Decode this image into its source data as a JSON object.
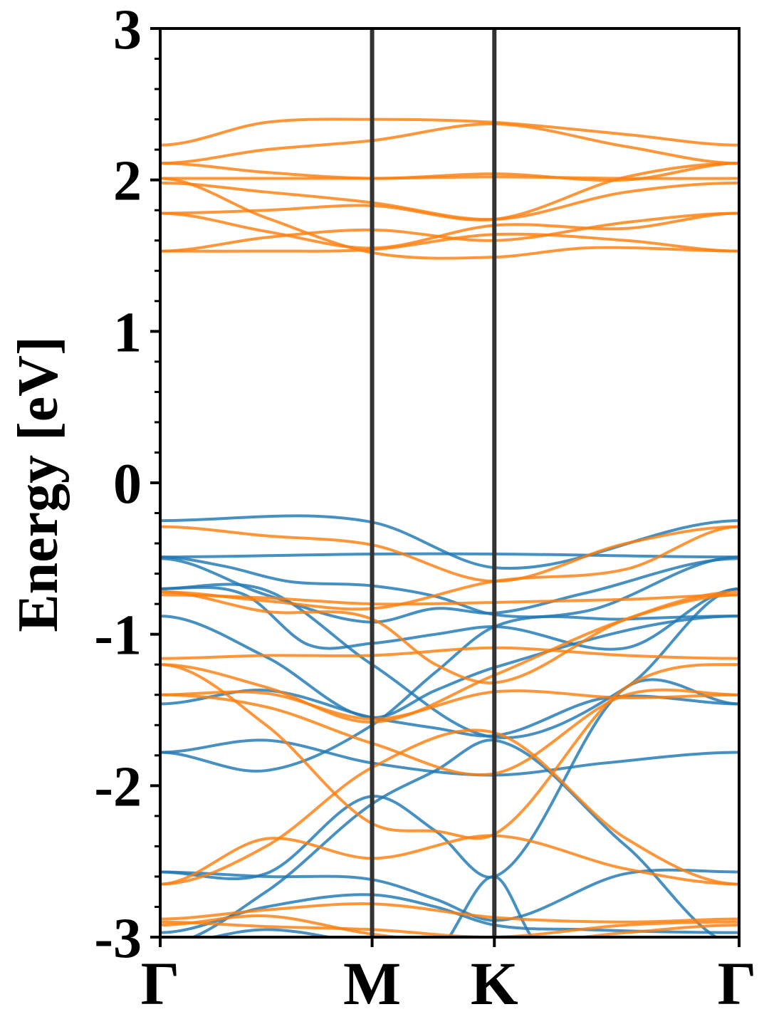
{
  "chart_data": {
    "type": "line",
    "title": "",
    "xlabel": "",
    "ylabel": "Energy [eV]",
    "ylim": [
      -3,
      3
    ],
    "yticks": [
      3,
      2,
      1,
      0,
      -1,
      -2,
      -3
    ],
    "ytick_labels": [
      "3",
      "2",
      "1",
      "0",
      "-1",
      "-2",
      "-3"
    ],
    "x_path": {
      "points": [
        "Γ",
        "M",
        "K",
        "Γ"
      ],
      "positions": [
        0.0,
        1.0,
        1.577,
        2.732
      ]
    },
    "grid": false,
    "legend": "none",
    "series_colors": {
      "blue": "#1f77b4",
      "orange": "#ff7f0e"
    },
    "series": [
      {
        "color": "blue",
        "x": [
          0.0,
          1.0,
          1.577,
          2.732
        ],
        "y": [
          -0.25,
          -0.26,
          -0.56,
          -0.25
        ]
      },
      {
        "color": "blue",
        "x": [
          0.0,
          1.0,
          1.577,
          2.732
        ],
        "y": [
          -0.49,
          -0.47,
          -0.47,
          -0.49
        ]
      },
      {
        "color": "blue",
        "x": [
          0.0,
          0.3,
          0.6,
          1.0,
          1.3,
          1.577,
          2.0,
          2.732
        ],
        "y": [
          -0.49,
          -0.55,
          -0.65,
          -0.68,
          -0.75,
          -0.87,
          -0.85,
          -0.49
        ]
      },
      {
        "color": "blue",
        "x": [
          0.0,
          0.5,
          1.0,
          1.3,
          1.577,
          2.0,
          2.732
        ],
        "y": [
          -0.5,
          -0.74,
          -0.92,
          -0.83,
          -0.86,
          -0.73,
          -0.5
        ]
      },
      {
        "color": "blue",
        "x": [
          0.0,
          0.4,
          0.7,
          1.0,
          1.3,
          1.577,
          2.2,
          2.732
        ],
        "y": [
          -0.7,
          -0.74,
          -1.07,
          -1.06,
          -1.0,
          -0.95,
          -1.09,
          -0.7
        ]
      },
      {
        "color": "blue",
        "x": [
          0.0,
          0.5,
          1.0,
          1.577,
          2.2,
          2.732
        ],
        "y": [
          -0.7,
          -0.71,
          -1.2,
          -1.68,
          -1.35,
          -0.7
        ]
      },
      {
        "color": "blue",
        "x": [
          0.0,
          0.5,
          1.0,
          1.3,
          1.577,
          2.732
        ],
        "y": [
          -0.88,
          -1.15,
          -1.55,
          -1.37,
          -1.22,
          -0.88
        ]
      },
      {
        "color": "blue",
        "x": [
          0.0,
          0.5,
          1.0,
          1.3,
          1.577,
          2.1,
          2.732
        ],
        "y": [
          -1.46,
          -1.37,
          -1.55,
          -1.62,
          -1.67,
          -1.42,
          -1.46
        ]
      },
      {
        "color": "blue",
        "x": [
          0.0,
          0.5,
          1.0,
          1.3,
          1.577,
          2.2,
          2.732
        ],
        "y": [
          -1.78,
          -1.9,
          -1.6,
          -1.25,
          -0.95,
          -0.9,
          -0.88
        ]
      },
      {
        "color": "blue",
        "x": [
          0.0,
          0.5,
          1.0,
          1.577,
          2.1,
          2.732
        ],
        "y": [
          -1.78,
          -1.7,
          -1.85,
          -1.93,
          -1.85,
          -1.78
        ]
      },
      {
        "color": "blue",
        "x": [
          0.0,
          0.5,
          1.0,
          1.3,
          1.577,
          2.2,
          2.732
        ],
        "y": [
          -2.57,
          -2.58,
          -2.07,
          -2.3,
          -2.6,
          -1.35,
          -1.46
        ]
      },
      {
        "color": "blue",
        "x": [
          0.0,
          0.5,
          1.0,
          1.3,
          1.577,
          2.2,
          2.732
        ],
        "y": [
          -3.05,
          -2.7,
          -2.12,
          -1.9,
          -1.7,
          -2.4,
          -3.05
        ]
      },
      {
        "color": "blue",
        "x": [
          0.0,
          0.5,
          1.0,
          1.3,
          1.577,
          2.2,
          2.732
        ],
        "y": [
          -2.57,
          -2.6,
          -2.62,
          -2.75,
          -2.89,
          -2.58,
          -2.57
        ]
      },
      {
        "color": "blue",
        "x": [
          0.0,
          0.5,
          1.0,
          1.3,
          1.577,
          2.0,
          2.732
        ],
        "y": [
          -2.97,
          -2.8,
          -2.72,
          -2.8,
          -2.92,
          -2.95,
          -2.97
        ]
      },
      {
        "color": "blue",
        "x": [
          0.0,
          0.5,
          1.0,
          1.3,
          1.577,
          1.8
        ],
        "y": [
          -3.05,
          -2.95,
          -3.05,
          -3.1,
          -2.6,
          -3.05
        ]
      },
      {
        "color": "orange",
        "x": [
          0.0,
          0.5,
          1.0,
          1.577,
          2.2,
          2.732
        ],
        "y": [
          2.23,
          2.38,
          2.4,
          2.38,
          2.3,
          2.23
        ]
      },
      {
        "color": "orange",
        "x": [
          0.0,
          0.5,
          1.0,
          1.577,
          2.2,
          2.732
        ],
        "y": [
          2.11,
          2.2,
          2.26,
          2.37,
          2.22,
          2.11
        ]
      },
      {
        "color": "orange",
        "x": [
          0.0,
          0.5,
          1.0,
          1.577,
          2.2,
          2.732
        ],
        "y": [
          2.11,
          2.05,
          2.01,
          2.04,
          2.0,
          2.11
        ]
      },
      {
        "color": "orange",
        "x": [
          0.0,
          0.5,
          1.0,
          1.577,
          2.2,
          2.732
        ],
        "y": [
          2.01,
          2.01,
          2.01,
          2.02,
          2.01,
          2.01
        ]
      },
      {
        "color": "orange",
        "x": [
          0.0,
          0.5,
          1.0,
          1.577,
          2.2,
          2.732
        ],
        "y": [
          1.98,
          1.92,
          1.85,
          1.74,
          1.92,
          1.98
        ]
      },
      {
        "color": "orange",
        "x": [
          0.0,
          0.5,
          1.0,
          1.577,
          2.0,
          2.732
        ],
        "y": [
          2.01,
          1.75,
          1.52,
          1.49,
          1.55,
          1.53
        ]
      },
      {
        "color": "orange",
        "x": [
          0.0,
          0.5,
          1.0,
          1.577,
          2.2,
          2.732
        ],
        "y": [
          1.78,
          1.8,
          1.83,
          1.74,
          2.02,
          2.11
        ]
      },
      {
        "color": "orange",
        "x": [
          0.0,
          0.5,
          1.0,
          1.577,
          2.2,
          2.732
        ],
        "y": [
          1.78,
          1.66,
          1.55,
          1.7,
          1.68,
          1.78
        ]
      },
      {
        "color": "orange",
        "x": [
          0.0,
          0.5,
          1.0,
          1.577,
          2.2,
          2.732
        ],
        "y": [
          1.53,
          1.62,
          1.67,
          1.6,
          1.72,
          1.78
        ]
      },
      {
        "color": "orange",
        "x": [
          0.0,
          0.5,
          1.0,
          1.577,
          2.2,
          2.732
        ],
        "y": [
          1.53,
          1.53,
          1.54,
          1.64,
          1.6,
          1.53
        ]
      },
      {
        "color": "orange",
        "x": [
          0.0,
          0.5,
          1.0,
          1.577,
          2.2,
          2.732
        ],
        "y": [
          -0.29,
          -0.35,
          -0.41,
          -0.65,
          -0.4,
          -0.29
        ]
      },
      {
        "color": "orange",
        "x": [
          0.0,
          0.5,
          1.0,
          1.577,
          2.2,
          2.732
        ],
        "y": [
          -0.72,
          -0.78,
          -0.83,
          -0.65,
          -0.57,
          -0.29
        ]
      },
      {
        "color": "orange",
        "x": [
          0.0,
          0.5,
          1.0,
          1.3,
          1.577,
          2.2,
          2.732
        ],
        "y": [
          -0.72,
          -0.85,
          -0.9,
          -1.2,
          -1.32,
          -0.9,
          -0.72
        ]
      },
      {
        "color": "orange",
        "x": [
          0.0,
          0.5,
          1.0,
          1.577,
          2.2,
          2.732
        ],
        "y": [
          -0.74,
          -0.76,
          -0.8,
          -0.79,
          -0.77,
          -0.74
        ]
      },
      {
        "color": "orange",
        "x": [
          0.0,
          0.5,
          1.0,
          1.577,
          2.2,
          2.732
        ],
        "y": [
          -1.16,
          -1.14,
          -1.14,
          -1.09,
          -1.14,
          -1.16
        ]
      },
      {
        "color": "orange",
        "x": [
          0.0,
          0.5,
          1.0,
          1.577,
          2.2,
          2.732
        ],
        "y": [
          -1.2,
          -1.35,
          -1.58,
          -1.27,
          -0.9,
          -0.74
        ]
      },
      {
        "color": "orange",
        "x": [
          0.0,
          0.5,
          1.0,
          1.3,
          1.577,
          2.2,
          2.732
        ],
        "y": [
          -1.2,
          -1.6,
          -2.25,
          -2.3,
          -2.32,
          -1.35,
          -1.2
        ]
      },
      {
        "color": "orange",
        "x": [
          0.0,
          0.5,
          1.0,
          1.577,
          2.2,
          2.732
        ],
        "y": [
          -1.4,
          -1.39,
          -1.56,
          -1.38,
          -1.42,
          -1.4
        ]
      },
      {
        "color": "orange",
        "x": [
          0.0,
          0.5,
          1.0,
          1.577,
          2.2,
          2.732
        ],
        "y": [
          -1.4,
          -1.48,
          -1.72,
          -1.92,
          -1.4,
          -1.4
        ]
      },
      {
        "color": "orange",
        "x": [
          0.0,
          0.5,
          1.0,
          1.577,
          2.2,
          2.732
        ],
        "y": [
          -2.65,
          -2.4,
          -1.88,
          -1.65,
          -2.35,
          -2.65
        ]
      },
      {
        "color": "orange",
        "x": [
          0.0,
          0.5,
          1.0,
          1.577,
          2.2,
          2.732
        ],
        "y": [
          -2.65,
          -2.35,
          -2.48,
          -2.33,
          -2.55,
          -2.65
        ]
      },
      {
        "color": "orange",
        "x": [
          0.0,
          0.5,
          1.0,
          1.577,
          2.2,
          2.732
        ],
        "y": [
          -2.88,
          -2.82,
          -2.78,
          -2.87,
          -2.9,
          -2.88
        ]
      },
      {
        "color": "orange",
        "x": [
          0.0,
          0.5,
          1.0,
          1.577,
          2.2,
          2.732
        ],
        "y": [
          -2.9,
          -2.93,
          -2.95,
          -3.0,
          -2.92,
          -2.9
        ]
      },
      {
        "color": "orange",
        "x": [
          0.0,
          0.5,
          1.0,
          1.577,
          2.2,
          2.732
        ],
        "y": [
          -2.92,
          -2.86,
          -2.98,
          -3.05,
          -2.97,
          -2.92
        ]
      }
    ]
  }
}
